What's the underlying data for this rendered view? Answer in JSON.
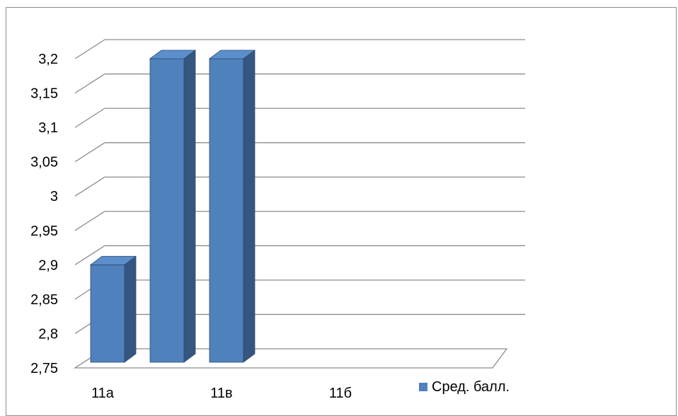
{
  "chart_data": {
    "type": "bar",
    "style": "3d-clustered-column",
    "categories": [
      "11а",
      "",
      "11в",
      "",
      "11б",
      ""
    ],
    "series": [
      {
        "name": "Сред. балл.",
        "values": [
          2.9,
          3.2,
          3.2,
          null,
          null,
          null
        ],
        "color": "#4f81bd"
      }
    ],
    "ylim": [
      2.75,
      3.2
    ],
    "yticks": [
      "2,75",
      "2,8",
      "2,85",
      "2,9",
      "2,95",
      "3",
      "3,05",
      "3,1",
      "3,15",
      "3,2"
    ],
    "grid": true,
    "legend_position": "right"
  }
}
